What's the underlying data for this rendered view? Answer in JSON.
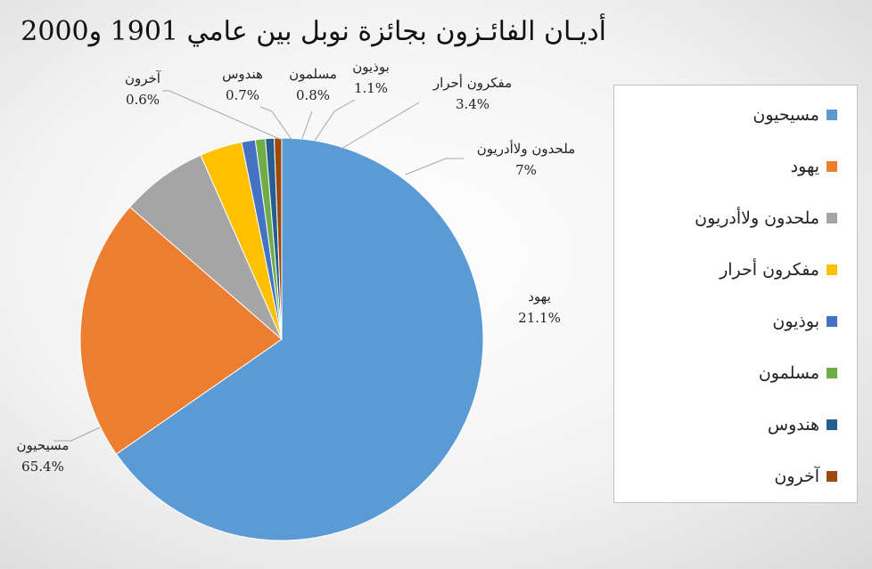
{
  "chart_data": {
    "type": "pie",
    "title": "أديـان الفائـزون بجائزة نوبل بين عامي 1901 و2000",
    "slices": [
      {
        "name": "مسيحيون",
        "value": 65.4,
        "label": "65.4%",
        "color": "#5b9bd5"
      },
      {
        "name": "يهود",
        "value": 21.1,
        "label": "21.1%",
        "color": "#ed7d31"
      },
      {
        "name": "ملحدون ولاأدريون",
        "value": 7,
        "label": "7%",
        "color": "#a5a5a5"
      },
      {
        "name": "مفكرون أحرار",
        "value": 3.4,
        "label": "3.4%",
        "color": "#ffc000"
      },
      {
        "name": "بوذيون",
        "value": 1.1,
        "label": "1.1%",
        "color": "#4472c4"
      },
      {
        "name": "مسلمون",
        "value": 0.8,
        "label": "0.8%",
        "color": "#70ad47"
      },
      {
        "name": "هندوس",
        "value": 0.7,
        "label": "0.7%",
        "color": "#255e91"
      },
      {
        "name": "آخرون",
        "value": 0.6,
        "label": "0.6%",
        "color": "#9e480e"
      }
    ],
    "legend_position": "right"
  }
}
